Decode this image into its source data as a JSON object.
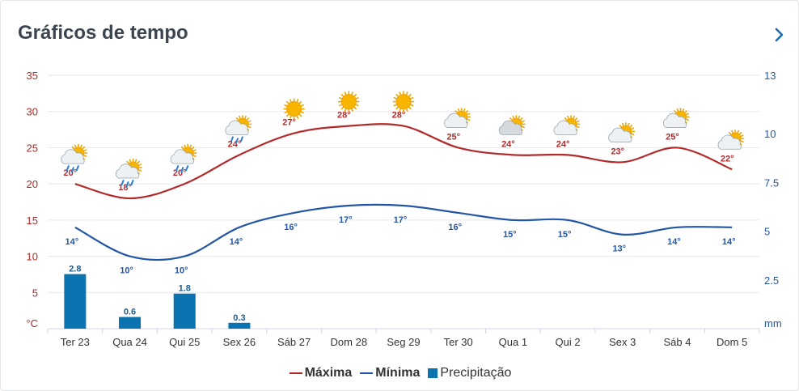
{
  "header": {
    "title": "Gráficos de tempo"
  },
  "colors": {
    "max": "#b22a2a",
    "min": "#2456a6",
    "precip": "#0a73b0",
    "grid": "#e6e6e6",
    "axis": "#ccd6eb"
  },
  "legend": {
    "max_label": "Máxima",
    "min_label": "Mínima",
    "precip_label": "Precipitação"
  },
  "chart_data": {
    "type": "line",
    "categories": [
      "Ter 23",
      "Qua 24",
      "Qui 25",
      "Sex 26",
      "Sáb 27",
      "Dom 28",
      "Seg 29",
      "Ter 30",
      "Qua 1",
      "Qui 2",
      "Sex 3",
      "Sáb 4",
      "Dom 5"
    ],
    "series": [
      {
        "name": "Máxima",
        "type": "line",
        "axis": "left",
        "values": [
          20,
          18,
          20,
          24,
          27,
          28,
          28,
          25,
          24,
          24,
          23,
          25,
          22
        ],
        "labels": [
          "20°",
          "18°",
          "20°",
          "24°",
          "27°",
          "28°",
          "28°",
          "25°",
          "24°",
          "24°",
          "23°",
          "25°",
          "22°"
        ]
      },
      {
        "name": "Mínima",
        "type": "line",
        "axis": "left",
        "values": [
          14,
          10,
          10,
          14,
          16,
          17,
          17,
          16,
          15,
          15,
          13,
          14,
          14
        ],
        "labels": [
          "14°",
          "10°",
          "10°",
          "14°",
          "16°",
          "17°",
          "17°",
          "16°",
          "15°",
          "15°",
          "13°",
          "14°",
          "14°"
        ]
      },
      {
        "name": "Precipitação",
        "type": "bar",
        "axis": "right",
        "values": [
          2.8,
          0.6,
          1.8,
          0.3,
          0,
          0,
          0,
          0,
          0,
          0,
          0,
          0,
          0
        ],
        "labels": [
          "2.8",
          "0.6",
          "1.8",
          "0.3",
          "",
          "",
          "",
          "",
          "",
          "",
          "",
          "",
          ""
        ]
      }
    ],
    "y_left": {
      "unit": "°C",
      "ticks": [
        5,
        10,
        15,
        20,
        25,
        30,
        35
      ],
      "range": [
        0,
        35
      ]
    },
    "y_right": {
      "unit": "mm",
      "ticks": [
        "2.5",
        "5",
        "7.5",
        "10",
        "13"
      ],
      "range": [
        0,
        13
      ]
    },
    "icons": [
      "sun-cloud-rain",
      "sun-cloud-rain",
      "sun-cloud-rain",
      "sun-cloud-rain",
      "sun",
      "sun",
      "sun",
      "sun-cloud",
      "sun-cloud-grey",
      "sun-cloud",
      "sun-cloud",
      "sun-cloud",
      "sun-cloud"
    ],
    "grid": true
  }
}
